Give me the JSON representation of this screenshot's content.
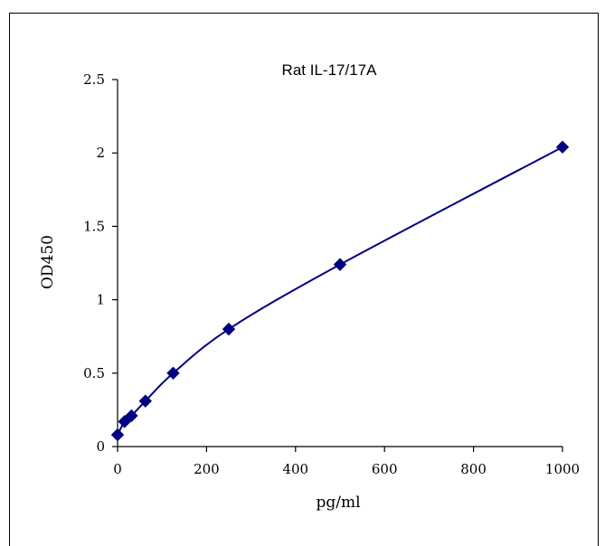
{
  "chart_data": {
    "type": "scatter",
    "title": "Rat IL-17/17A",
    "xlabel": "pg/ml",
    "ylabel": "OD450",
    "xlim": [
      0,
      1000
    ],
    "ylim": [
      0,
      2.5
    ],
    "x_ticks": [
      "0",
      "200",
      "400",
      "600",
      "800",
      "1000"
    ],
    "y_ticks": [
      "0",
      "0.5",
      "1",
      "1.5",
      "2",
      "2.5"
    ],
    "grid": false,
    "legend": "none",
    "series": [
      {
        "x": [
          0,
          15.6,
          31.25,
          62.5,
          125,
          250,
          500,
          1000
        ],
        "y": [
          0.08,
          0.17,
          0.21,
          0.31,
          0.5,
          0.8,
          1.24,
          2.04
        ],
        "color": "#000080",
        "marker": "diamond",
        "fit_line": true
      }
    ]
  }
}
